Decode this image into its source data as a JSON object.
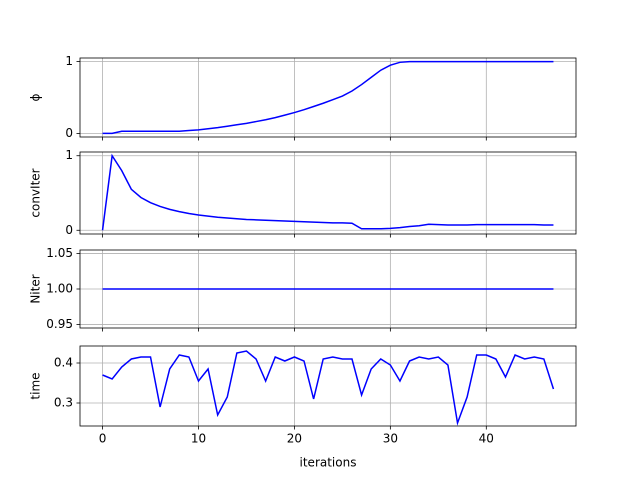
{
  "chart_data": [
    {
      "type": "line",
      "ylabel": "ϕ",
      "x": [
        0,
        1,
        2,
        3,
        4,
        5,
        6,
        7,
        8,
        9,
        10,
        11,
        12,
        13,
        14,
        15,
        16,
        17,
        18,
        19,
        20,
        21,
        22,
        23,
        24,
        25,
        26,
        27,
        28,
        29,
        30,
        31,
        32,
        33,
        34,
        35,
        36,
        37,
        38,
        39,
        40,
        41,
        42,
        43,
        44,
        45,
        46,
        47
      ],
      "series": [
        {
          "color": "#0000ff",
          "values": [
            0,
            0,
            0.03,
            0.03,
            0.03,
            0.03,
            0.03,
            0.03,
            0.03,
            0.04,
            0.05,
            0.065,
            0.08,
            0.1,
            0.12,
            0.14,
            0.165,
            0.19,
            0.22,
            0.255,
            0.29,
            0.33,
            0.375,
            0.42,
            0.47,
            0.52,
            0.59,
            0.68,
            0.78,
            0.88,
            0.95,
            0.99,
            1,
            1,
            1,
            1,
            1,
            1,
            1,
            1,
            1,
            1,
            1,
            1,
            1,
            1,
            1,
            1
          ]
        }
      ],
      "xlim": [
        -2.35,
        49.35
      ],
      "xticks": [
        0,
        10,
        20,
        30,
        40
      ],
      "ylim": [
        -0.05,
        1.05
      ],
      "yticks": [
        0,
        1
      ],
      "grid": true
    },
    {
      "type": "line",
      "ylabel": "convIter",
      "x": [
        0,
        1,
        2,
        3,
        4,
        5,
        6,
        7,
        8,
        9,
        10,
        11,
        12,
        13,
        14,
        15,
        16,
        17,
        18,
        19,
        20,
        21,
        22,
        23,
        24,
        25,
        26,
        27,
        28,
        29,
        30,
        31,
        32,
        33,
        34,
        35,
        36,
        37,
        38,
        39,
        40,
        41,
        42,
        43,
        44,
        45,
        46,
        47
      ],
      "series": [
        {
          "color": "#0000ff",
          "values": [
            0,
            1,
            0.8,
            0.55,
            0.44,
            0.37,
            0.32,
            0.28,
            0.25,
            0.225,
            0.205,
            0.19,
            0.175,
            0.165,
            0.155,
            0.145,
            0.14,
            0.135,
            0.13,
            0.125,
            0.12,
            0.115,
            0.11,
            0.105,
            0.1,
            0.1,
            0.095,
            0.02,
            0.02,
            0.02,
            0.025,
            0.035,
            0.05,
            0.06,
            0.08,
            0.075,
            0.07,
            0.07,
            0.07,
            0.075,
            0.075,
            0.075,
            0.075,
            0.075,
            0.075,
            0.075,
            0.07,
            0.07
          ]
        }
      ],
      "xlim": [
        -2.35,
        49.35
      ],
      "xticks": [
        0,
        10,
        20,
        30,
        40
      ],
      "ylim": [
        -0.05,
        1.05
      ],
      "yticks": [
        0,
        1
      ],
      "grid": true
    },
    {
      "type": "line",
      "ylabel": "Niter",
      "x": [
        0,
        1,
        2,
        3,
        4,
        5,
        6,
        7,
        8,
        9,
        10,
        11,
        12,
        13,
        14,
        15,
        16,
        17,
        18,
        19,
        20,
        21,
        22,
        23,
        24,
        25,
        26,
        27,
        28,
        29,
        30,
        31,
        32,
        33,
        34,
        35,
        36,
        37,
        38,
        39,
        40,
        41,
        42,
        43,
        44,
        45,
        46,
        47
      ],
      "series": [
        {
          "color": "#0000ff",
          "values": [
            1,
            1,
            1,
            1,
            1,
            1,
            1,
            1,
            1,
            1,
            1,
            1,
            1,
            1,
            1,
            1,
            1,
            1,
            1,
            1,
            1,
            1,
            1,
            1,
            1,
            1,
            1,
            1,
            1,
            1,
            1,
            1,
            1,
            1,
            1,
            1,
            1,
            1,
            1,
            1,
            1,
            1,
            1,
            1,
            1,
            1,
            1,
            1
          ]
        }
      ],
      "xlim": [
        -2.35,
        49.35
      ],
      "xticks": [
        0,
        10,
        20,
        30,
        40
      ],
      "ylim": [
        0.945,
        1.055
      ],
      "yticks": [
        {
          "value": 0.95,
          "label": "0.95"
        },
        {
          "value": 1,
          "label": "1.00"
        },
        {
          "value": 1.05,
          "label": "1.05"
        }
      ],
      "grid": true
    },
    {
      "type": "line",
      "ylabel": "time",
      "xlabel": "iterations",
      "x": [
        0,
        1,
        2,
        3,
        4,
        5,
        6,
        7,
        8,
        9,
        10,
        11,
        12,
        13,
        14,
        15,
        16,
        17,
        18,
        19,
        20,
        21,
        22,
        23,
        24,
        25,
        26,
        27,
        28,
        29,
        30,
        31,
        32,
        33,
        34,
        35,
        36,
        37,
        38,
        39,
        40,
        41,
        42,
        43,
        44,
        45,
        46,
        47
      ],
      "series": [
        {
          "color": "#0000ff",
          "values": [
            0.37,
            0.36,
            0.39,
            0.41,
            0.415,
            0.415,
            0.29,
            0.385,
            0.42,
            0.415,
            0.355,
            0.385,
            0.27,
            0.315,
            0.425,
            0.43,
            0.41,
            0.355,
            0.415,
            0.405,
            0.415,
            0.405,
            0.31,
            0.41,
            0.415,
            0.41,
            0.41,
            0.32,
            0.385,
            0.41,
            0.395,
            0.355,
            0.405,
            0.415,
            0.41,
            0.415,
            0.395,
            0.25,
            0.315,
            0.42,
            0.42,
            0.41,
            0.365,
            0.42,
            0.41,
            0.415,
            0.41,
            0.335
          ]
        }
      ],
      "xlim": [
        -2.35,
        49.35
      ],
      "xticks": [
        0,
        10,
        20,
        30,
        40
      ],
      "ylim": [
        0.2425,
        0.4425
      ],
      "yticks": [
        0.3,
        0.4
      ],
      "grid": true
    }
  ]
}
